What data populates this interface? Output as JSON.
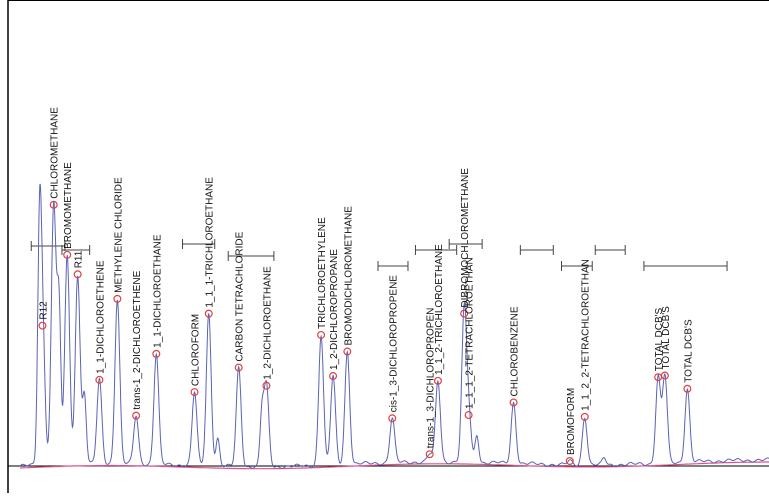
{
  "chart_data": {
    "type": "line",
    "title": "",
    "xlabel": "",
    "ylabel": "",
    "xlim": [
      0,
      100
    ],
    "ylim": [
      0,
      100
    ],
    "grid": false,
    "colors": {
      "trace": "#5a64b4",
      "baseline": "#e0508c",
      "peak_marker": "#e04040",
      "axis": "#000000"
    },
    "peaks": [
      {
        "label": "R12",
        "rt": 3.0,
        "height": 40.3
      },
      {
        "label": "CHLOROMETHANE",
        "rt": 4.5,
        "height": 75.1
      },
      {
        "label": "BROMOMETHANE",
        "rt": 6.3,
        "height": 60.5
      },
      {
        "label": "R11",
        "rt": 7.7,
        "height": 54.8
      },
      {
        "label": "1_1-DICHLOROETHENE",
        "rt": 10.6,
        "height": 24.2
      },
      {
        "label": "METHYLENE CHLORIDE",
        "rt": 13.0,
        "height": 47.6
      },
      {
        "label": "trans-1_2-DICHLOROETHENE",
        "rt": 15.5,
        "height": 13.9
      },
      {
        "label": "1_1-DICHLOROETHANE",
        "rt": 18.2,
        "height": 31.9
      },
      {
        "label": "CHLOROFORM",
        "rt": 23.3,
        "height": 21.2
      },
      {
        "label": "1_1_1-TRICHLOROETHANE",
        "rt": 25.2,
        "height": 44.0
      },
      {
        "label": "CARBON TETRACHLORIDE",
        "rt": 29.2,
        "height": 28.6
      },
      {
        "label": "1_2-DICHLOROETHANE",
        "rt": 32.9,
        "height": 23.4
      },
      {
        "label": "TRICHLOROETHYLENE",
        "rt": 40.2,
        "height": 37.7
      },
      {
        "label": "1_2-DICHLOROPROPANE",
        "rt": 41.8,
        "height": 25.7
      },
      {
        "label": "BROMODICHLOROMETHANE",
        "rt": 43.7,
        "height": 32.6
      },
      {
        "label": "cis-1_3-DICHLOROPROPENE",
        "rt": 49.7,
        "height": 12.8
      },
      {
        "label": "trans-1_3-DICHLOROPROPEN",
        "rt": 54.7,
        "height": 2.2
      },
      {
        "label": "1_1_2-TRICHLOROETHANE",
        "rt": 55.8,
        "height": 23.4
      },
      {
        "label": "DIBROMOCHLOROMETHANE",
        "rt": 59.3,
        "height": 42.9
      },
      {
        "label": "1_1_1_2-TETRACHLOROETHAN",
        "rt": 59.9,
        "height": 13.6
      },
      {
        "label": "CHLOROBENZENE",
        "rt": 65.9,
        "height": 17.6
      },
      {
        "label": "BROMOFORM",
        "rt": 73.4,
        "height": 1.1
      },
      {
        "label": "1_1_2_2-TETRACHLOROETHAN",
        "rt": 75.4,
        "height": 13.9
      },
      {
        "label": "TOTAL DCB'S",
        "rt": 85.2,
        "height": 24.9
      },
      {
        "label": "TOTAL DCB'S",
        "rt": 86.1,
        "height": 25.3
      },
      {
        "label": "TOTAL DCB'S",
        "rt": 89.1,
        "height": 21.2
      }
    ],
    "minor_peaks": [
      {
        "rt": 2.6,
        "height": 60.0
      },
      {
        "rt": 5.2,
        "height": 45.0
      },
      {
        "rt": 8.6,
        "height": 20.0
      },
      {
        "rt": 26.4,
        "height": 8.0
      },
      {
        "rt": 32.3,
        "height": 15.0
      },
      {
        "rt": 61.0,
        "height": 8.0
      },
      {
        "rt": 78.0,
        "height": 2.0
      }
    ],
    "integration_brackets": [
      [
        1.5,
        6.0
      ],
      [
        5.6,
        9.3
      ],
      [
        21.7,
        26.0
      ],
      [
        27.8,
        33.9
      ],
      [
        47.8,
        51.8
      ],
      [
        52.8,
        58.3
      ],
      [
        57.3,
        61.7
      ],
      [
        66.8,
        71.2
      ],
      [
        72.3,
        76.4
      ],
      [
        76.8,
        80.8
      ],
      [
        83.3,
        94.4
      ]
    ]
  }
}
